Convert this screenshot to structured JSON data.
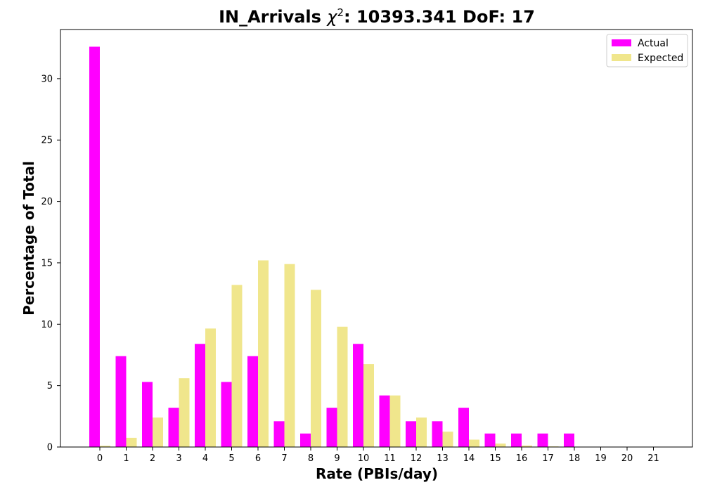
{
  "chart_data": {
    "type": "bar",
    "title_prefix": "IN_Arrivals ",
    "title_symbol": "χ",
    "title_sup": "2",
    "title_suffix": ": 10393.341 DoF: 17",
    "xlabel": "Rate (PBIs/day)",
    "ylabel": "Percentage of Total",
    "categories": [
      "0",
      "1",
      "2",
      "3",
      "4",
      "5",
      "6",
      "7",
      "8",
      "9",
      "10",
      "11",
      "12",
      "13",
      "14",
      "15",
      "16",
      "17",
      "18",
      "19",
      "20",
      "21"
    ],
    "ylim": [
      0,
      34
    ],
    "yticks": [
      0,
      5,
      10,
      15,
      20,
      25,
      30
    ],
    "grid": false,
    "legend_position": "top-right",
    "series": [
      {
        "name": "Actual",
        "color": "#ff00ff",
        "values": [
          32.6,
          7.4,
          5.3,
          3.2,
          8.4,
          5.3,
          7.4,
          2.1,
          1.1,
          3.2,
          8.4,
          4.2,
          2.1,
          2.1,
          3.2,
          1.1,
          1.1,
          1.1,
          1.1,
          0,
          0,
          0
        ]
      },
      {
        "name": "Expected",
        "color": "#f0e68c",
        "values": [
          0.1,
          0.75,
          2.4,
          5.6,
          9.65,
          13.2,
          15.2,
          14.9,
          12.8,
          9.8,
          6.75,
          4.2,
          2.4,
          1.25,
          0.6,
          0.28,
          0.12,
          0.05,
          0.02,
          0.01,
          0,
          0
        ]
      }
    ]
  }
}
